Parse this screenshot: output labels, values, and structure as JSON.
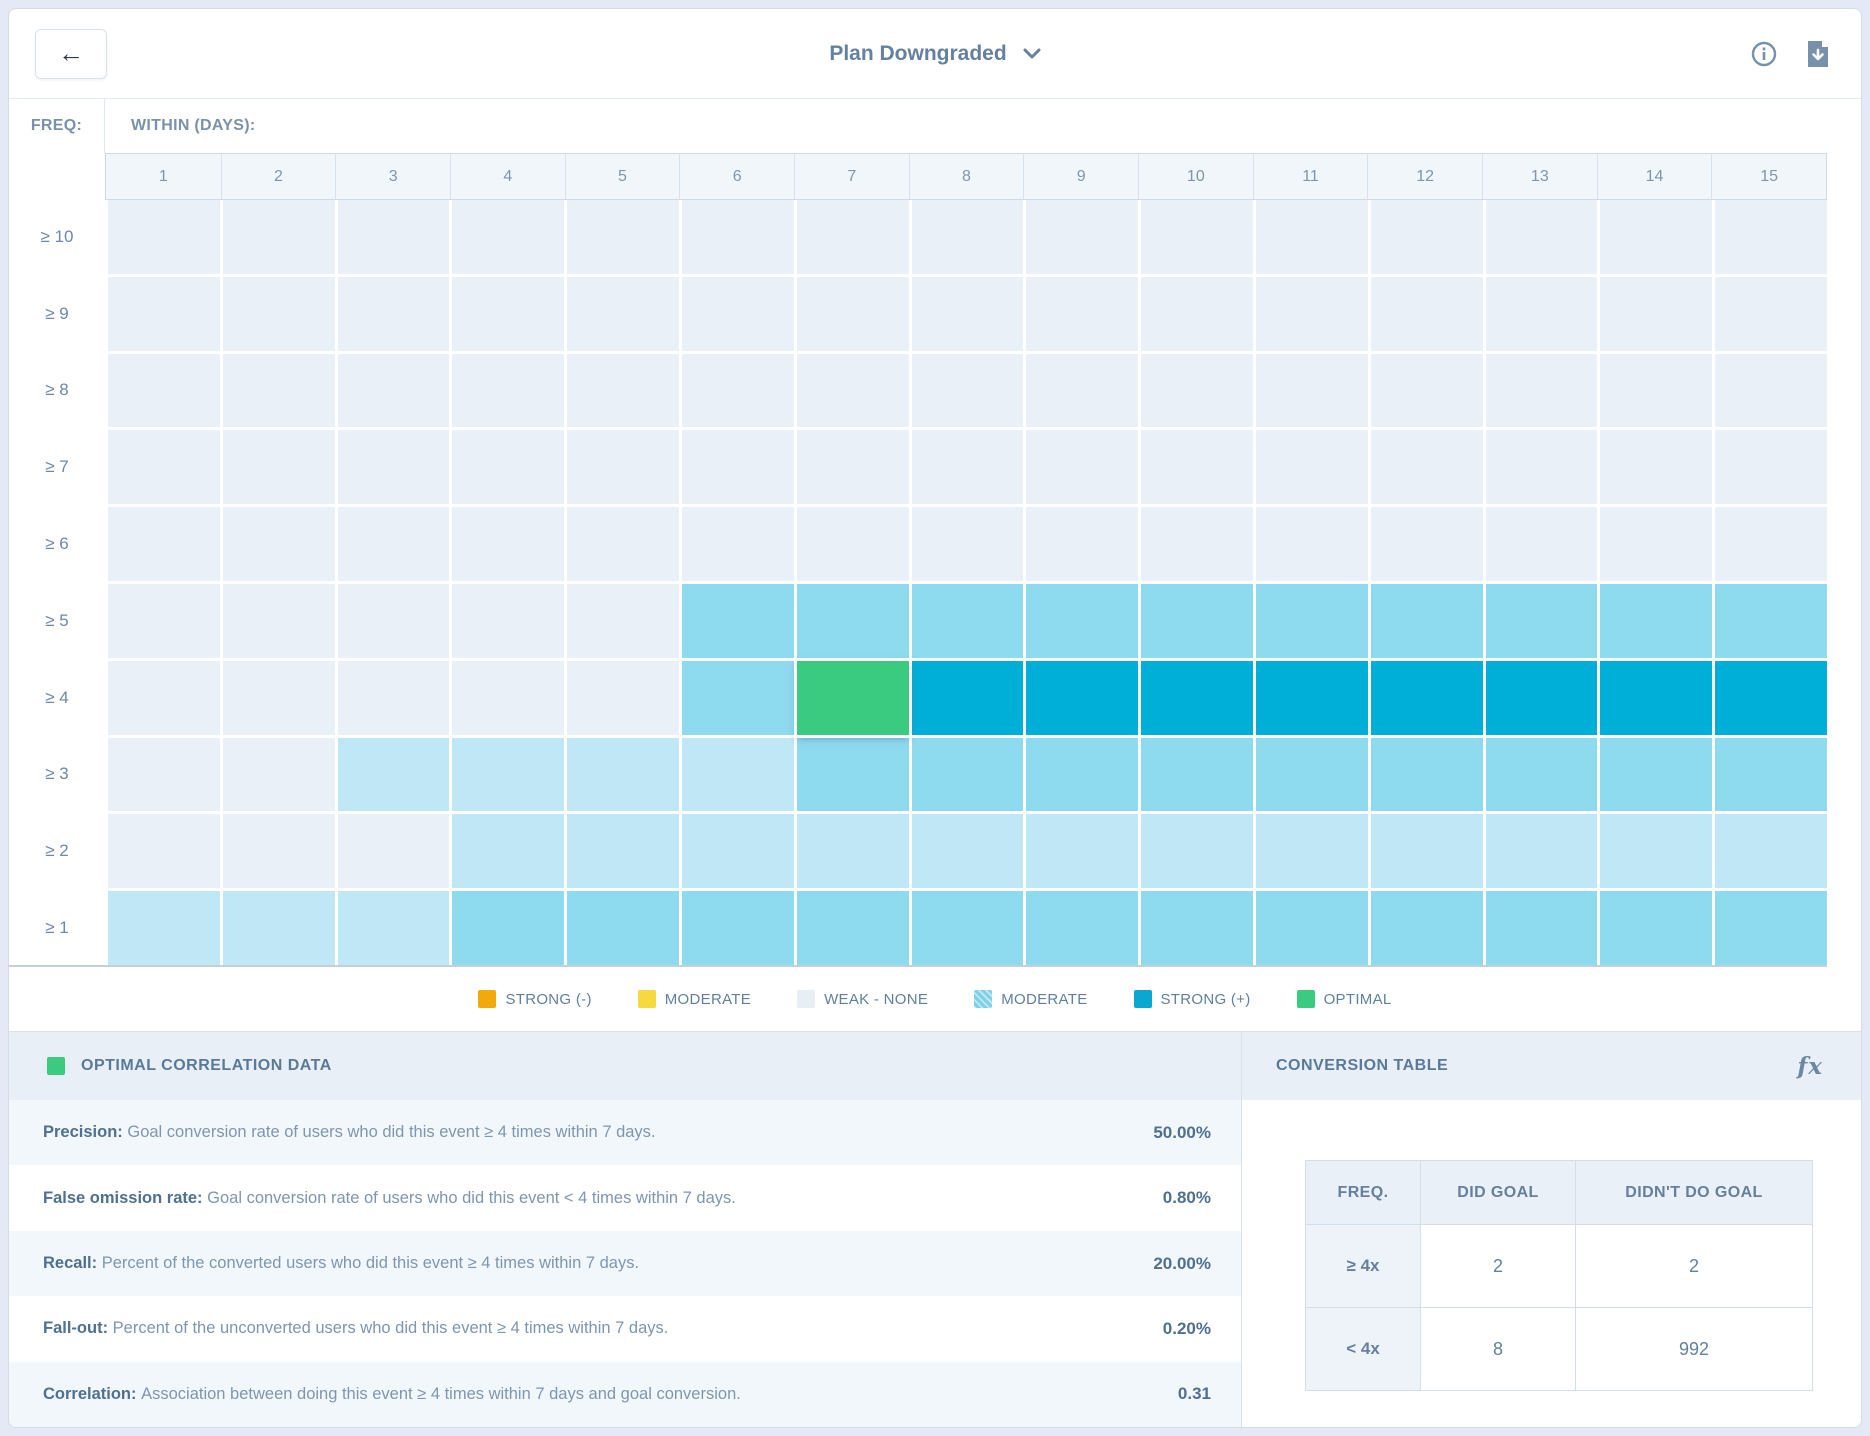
{
  "header": {
    "back_label": "←",
    "title": "Plan Downgraded"
  },
  "grid": {
    "freq_label": "FREQ:",
    "within_label": "WITHIN (DAYS):",
    "columns": [
      "1",
      "2",
      "3",
      "4",
      "5",
      "6",
      "7",
      "8",
      "9",
      "10",
      "11",
      "12",
      "13",
      "14",
      "15"
    ],
    "rows": [
      {
        "label": "≥ 10",
        "levels": [
          0,
          0,
          0,
          0,
          0,
          0,
          0,
          0,
          0,
          0,
          0,
          0,
          0,
          0,
          0
        ]
      },
      {
        "label": "≥ 9",
        "levels": [
          0,
          0,
          0,
          0,
          0,
          0,
          0,
          0,
          0,
          0,
          0,
          0,
          0,
          0,
          0
        ]
      },
      {
        "label": "≥ 8",
        "levels": [
          0,
          0,
          0,
          0,
          0,
          0,
          0,
          0,
          0,
          0,
          0,
          0,
          0,
          0,
          0
        ]
      },
      {
        "label": "≥ 7",
        "levels": [
          0,
          0,
          0,
          0,
          0,
          0,
          0,
          0,
          0,
          0,
          0,
          0,
          0,
          0,
          0
        ]
      },
      {
        "label": "≥ 6",
        "levels": [
          0,
          0,
          0,
          0,
          0,
          0,
          0,
          0,
          0,
          0,
          0,
          0,
          0,
          0,
          0
        ]
      },
      {
        "label": "≥ 5",
        "levels": [
          0,
          0,
          0,
          0,
          0,
          2,
          2,
          2,
          2,
          2,
          2,
          2,
          2,
          2,
          2
        ]
      },
      {
        "label": "≥ 4",
        "levels": [
          0,
          0,
          0,
          0,
          0,
          2,
          4,
          3,
          3,
          3,
          3,
          3,
          3,
          3,
          3
        ]
      },
      {
        "label": "≥ 3",
        "levels": [
          0,
          0,
          1,
          1,
          1,
          1,
          2,
          2,
          2,
          2,
          2,
          2,
          2,
          2,
          2
        ]
      },
      {
        "label": "≥ 2",
        "levels": [
          0,
          0,
          0,
          1,
          1,
          1,
          1,
          1,
          1,
          1,
          1,
          1,
          1,
          1,
          1
        ]
      },
      {
        "label": "≥ 1",
        "levels": [
          1,
          1,
          1,
          2,
          2,
          2,
          2,
          2,
          2,
          2,
          2,
          2,
          2,
          2,
          2
        ]
      }
    ],
    "palette": {
      "0": "#e9f0f8",
      "1": "#c0e7f6",
      "2": "#8edaef",
      "3": "#00afd8",
      "4": "#3bcb80"
    }
  },
  "legend": {
    "items": [
      {
        "label": "STRONG (-)",
        "color": "#f2a90c",
        "pattern": false
      },
      {
        "label": "MODERATE",
        "color": "#f6d93e",
        "pattern": false
      },
      {
        "label": "WEAK - NONE",
        "color": "#e7eef6",
        "pattern": false
      },
      {
        "label": "MODERATE",
        "color": "#7fcfe8",
        "pattern": true
      },
      {
        "label": "STRONG (+)",
        "color": "#0aa7d0",
        "pattern": false
      },
      {
        "label": "OPTIMAL",
        "color": "#3bcb80",
        "pattern": false
      }
    ]
  },
  "optimal_panel": {
    "title": "OPTIMAL CORRELATION DATA",
    "swatch_color": "#3bcb80",
    "metrics": [
      {
        "label": "Precision:",
        "description": "Goal conversion rate of users who did this event ≥ 4 times within 7 days.",
        "value": "50.00%"
      },
      {
        "label": "False omission rate:",
        "description": "Goal conversion rate of users who did this event < 4 times within 7 days.",
        "value": "0.80%"
      },
      {
        "label": "Recall:",
        "description": "Percent of the converted users who did this event ≥ 4 times within 7 days.",
        "value": "20.00%"
      },
      {
        "label": "Fall-out:",
        "description": "Percent of the unconverted users who did this event ≥ 4 times within 7 days.",
        "value": "0.20%"
      },
      {
        "label": "Correlation:",
        "description": "Association between doing this event ≥ 4 times within 7 days and goal conversion.",
        "value": "0.31"
      }
    ]
  },
  "conversion_panel": {
    "title": "CONVERSION TABLE",
    "fx_label": "fx",
    "table": {
      "headers": [
        "FREQ.",
        "DID GOAL",
        "DIDN'T DO GOAL"
      ],
      "rows": [
        {
          "freq": "≥ 4x",
          "did": "2",
          "didnt": "2"
        },
        {
          "freq": "< 4x",
          "did": "8",
          "didnt": "992"
        }
      ]
    }
  }
}
